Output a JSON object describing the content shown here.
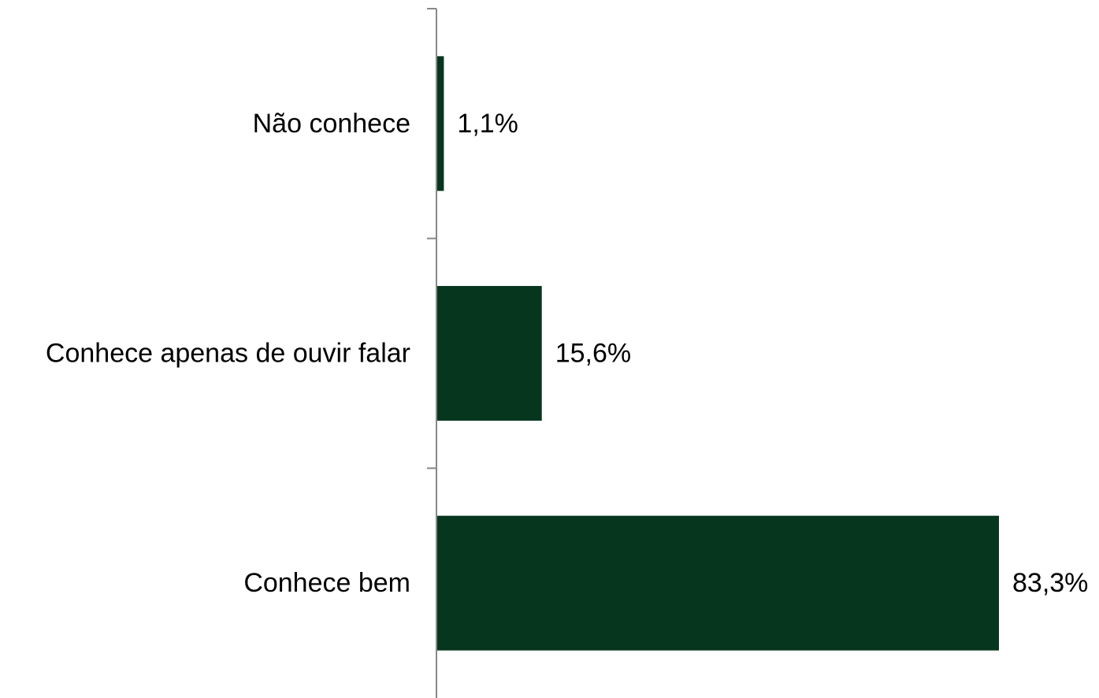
{
  "chart_data": {
    "type": "bar",
    "orientation": "horizontal",
    "categories": [
      "Não conhece",
      "Conhece apenas de ouvir falar",
      "Conhece bem"
    ],
    "values": [
      1.1,
      15.6,
      83.3
    ],
    "value_labels": [
      "1,1%",
      "15,6%",
      "83,3%"
    ],
    "title": "",
    "xlabel": "",
    "ylabel": "",
    "xlim": [
      0,
      83.3
    ],
    "grid": false,
    "legend": "none",
    "bar_color": "#07361f",
    "axis_color": "#888888"
  }
}
